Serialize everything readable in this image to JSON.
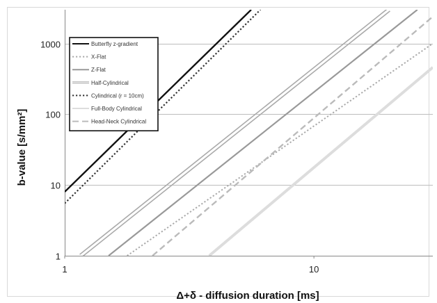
{
  "chart_data": {
    "type": "line",
    "title": "",
    "xlabel": "Δ+δ - diffusion duration [ms]",
    "ylabel": "b-value [s/mm²]",
    "x_scale": "log",
    "y_scale": "log",
    "xlim": [
      1,
      30
    ],
    "ylim": [
      1,
      3000
    ],
    "x_ticks": [
      1,
      10
    ],
    "y_ticks": [
      1,
      10,
      100,
      1000
    ],
    "grid": "horizontal",
    "legend_position": "top-left",
    "series": [
      {
        "name": "Butterfly z-gradient",
        "style": "solid",
        "color": "#111111",
        "width": 2.4,
        "x": [
          1,
          5.6
        ],
        "y": [
          8,
          3000
        ]
      },
      {
        "name": "X-Flat",
        "style": "dotted",
        "color": "#aaaaaa",
        "width": 2,
        "x": [
          1.78,
          30
        ],
        "y": [
          1,
          1000
        ]
      },
      {
        "name": "Z-Flat",
        "style": "solid",
        "color": "#999999",
        "width": 2.2,
        "x": [
          1.5,
          26
        ],
        "y": [
          1,
          3000
        ]
      },
      {
        "name": "Half-Cylindrical",
        "style": "double",
        "color": "#aaaaaa",
        "width": 2.5,
        "x": [
          1.16,
          20
        ],
        "y": [
          1,
          3000
        ]
      },
      {
        "name": "Cylindrical (r = 10cm)",
        "style": "dotted",
        "color": "#333333",
        "width": 2.2,
        "x": [
          1,
          6.1
        ],
        "y": [
          5.5,
          3000
        ]
      },
      {
        "name": "Full-Body Cylindrical",
        "style": "solid",
        "color": "#dddddd",
        "width": 4,
        "x": [
          3.8,
          30
        ],
        "y": [
          1,
          460
        ]
      },
      {
        "name": "Head-Neck Cylindrical",
        "style": "dashed",
        "color": "#bbbbbb",
        "width": 2.4,
        "x": [
          2.25,
          30
        ],
        "y": [
          1,
          2400
        ]
      }
    ]
  }
}
